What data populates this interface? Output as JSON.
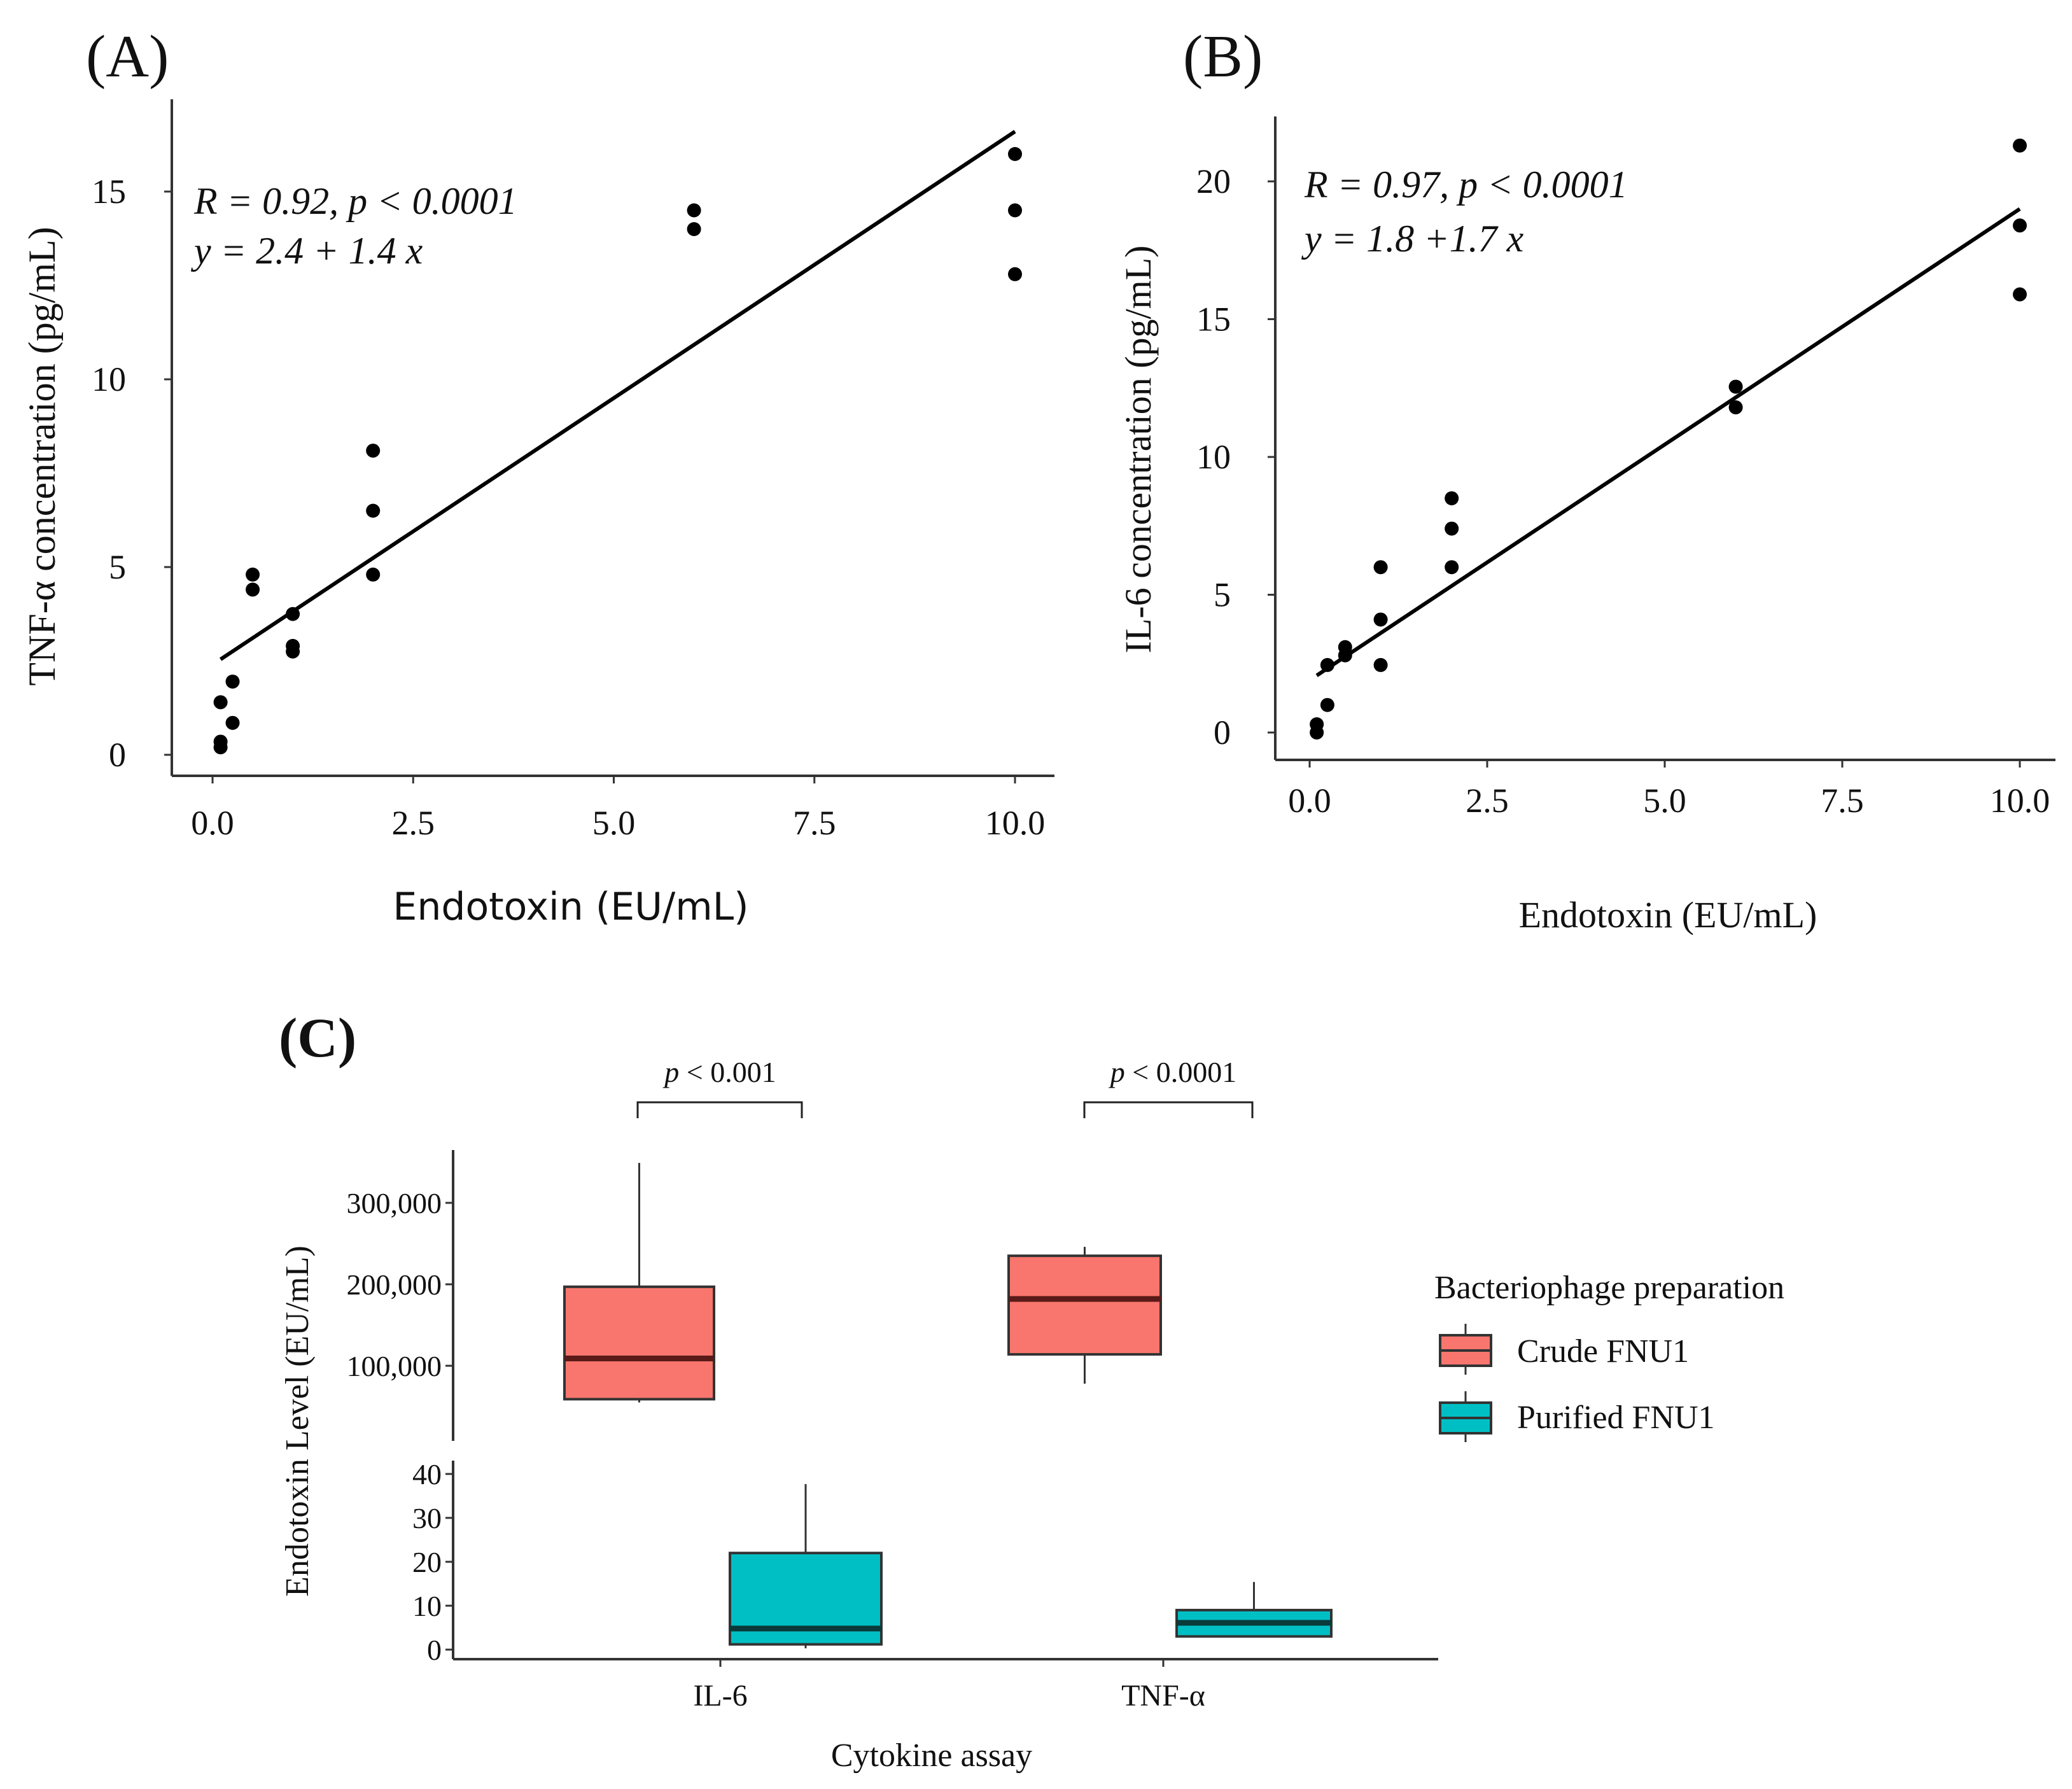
{
  "chart_data": [
    {
      "type": "scatter",
      "panel_label": "(A)",
      "xlabel": "Endotoxin (EU/mL)",
      "ylabel": "TNF-α concentration (pg/mL)",
      "annotation_r": "R = 0.92, p < 0.0001",
      "annotation_eq": "y = 2.4 + 1.4 x",
      "xlim": [
        -0.2,
        10.6
      ],
      "ylim": [
        -0.6,
        16.6
      ],
      "xticks": [
        0,
        2.5,
        5,
        7.5,
        10
      ],
      "xtick_labels": [
        "0.0",
        "2.5",
        "5.0",
        "7.5",
        "10.0"
      ],
      "yticks": [
        0,
        5,
        10,
        15
      ],
      "ytick_labels": [
        "0",
        "5",
        "10",
        "15"
      ],
      "points": [
        {
          "x": 0.1,
          "y": 0.2
        },
        {
          "x": 0.1,
          "y": 0.35
        },
        {
          "x": 0.1,
          "y": 1.4
        },
        {
          "x": 0.25,
          "y": 0.85
        },
        {
          "x": 0.25,
          "y": 1.95
        },
        {
          "x": 0.5,
          "y": 4.8
        },
        {
          "x": 0.5,
          "y": 4.4
        },
        {
          "x": 1,
          "y": 3.75
        },
        {
          "x": 1,
          "y": 2.9
        },
        {
          "x": 1,
          "y": 2.75
        },
        {
          "x": 2,
          "y": 8.1
        },
        {
          "x": 2,
          "y": 6.5
        },
        {
          "x": 2,
          "y": 4.8
        },
        {
          "x": 6,
          "y": 14.5
        },
        {
          "x": 6,
          "y": 14.0
        },
        {
          "x": 10,
          "y": 16.0
        },
        {
          "x": 10,
          "y": 14.5
        },
        {
          "x": 10,
          "y": 12.8
        }
      ],
      "fit": {
        "intercept": 2.4,
        "slope": 1.42,
        "x_range": [
          0.1,
          10
        ]
      }
    },
    {
      "type": "scatter",
      "panel_label": "(B)",
      "xlabel": "Endotoxin (EU/mL)",
      "ylabel": "IL-6 concentration (pg/mL)",
      "annotation_r": "R = 0.97, p < 0.0001",
      "annotation_eq": "y = 1.8 +1.7 x",
      "xlim": [
        -0.5,
        10.5
      ],
      "ylim": [
        -1,
        22.5
      ],
      "xticks": [
        0,
        2.5,
        5,
        7.5,
        10
      ],
      "xtick_labels": [
        "0.0",
        "2.5",
        "5.0",
        "7.5",
        "10.0"
      ],
      "yticks": [
        0,
        5,
        10,
        15,
        20
      ],
      "ytick_labels": [
        "0",
        "5",
        "10",
        "15",
        "20"
      ],
      "points": [
        {
          "x": 0.1,
          "y": 0.0
        },
        {
          "x": 0.1,
          "y": 0.3
        },
        {
          "x": 0.25,
          "y": 1.0
        },
        {
          "x": 0.25,
          "y": 2.45
        },
        {
          "x": 0.5,
          "y": 3.1
        },
        {
          "x": 0.5,
          "y": 2.8
        },
        {
          "x": 1,
          "y": 6.0
        },
        {
          "x": 1,
          "y": 4.1
        },
        {
          "x": 1,
          "y": 2.45
        },
        {
          "x": 2,
          "y": 8.5
        },
        {
          "x": 2,
          "y": 7.4
        },
        {
          "x": 2,
          "y": 6.0
        },
        {
          "x": 6,
          "y": 12.55
        },
        {
          "x": 6,
          "y": 11.8
        },
        {
          "x": 10,
          "y": 21.3
        },
        {
          "x": 10,
          "y": 18.4
        },
        {
          "x": 10,
          "y": 15.9
        }
      ],
      "fit": {
        "intercept": 1.9,
        "slope": 1.71,
        "x_range": [
          0.1,
          10
        ]
      }
    },
    {
      "type": "box",
      "panel_label": "(C)",
      "xlabel": "Cytokine assay",
      "ylabel": "Endotoxin Level (EU/mL)",
      "categories": [
        "IL-6",
        "TNF-α"
      ],
      "upper_axis": {
        "ylim": [
          20000,
          365000
        ],
        "yticks": [
          100000,
          200000,
          300000
        ],
        "ytick_labels": [
          "100,000",
          "200,000",
          "300,000"
        ]
      },
      "lower_axis": {
        "ylim": [
          -1,
          42
        ],
        "yticks": [
          0,
          10,
          20,
          30,
          40
        ],
        "ytick_labels": [
          "0",
          "10",
          "20",
          "30",
          "40"
        ]
      },
      "legend": {
        "title": "Bacteriophage preparation",
        "position": "right"
      },
      "series": [
        {
          "name": "Crude FNU1",
          "color": "#F8766D",
          "median_color": "#5a1a18",
          "boxes": [
            {
              "category": "IL-6",
              "min": 55000,
              "q1": 59000,
              "median": 109000,
              "q3": 197000,
              "max": 349000
            },
            {
              "category": "TNF-α",
              "min": 78000,
              "q1": 114000,
              "median": 182000,
              "q3": 235000,
              "max": 246000
            }
          ]
        },
        {
          "name": "Purified FNU1",
          "color": "#00BFC4",
          "median_color": "#0b3a3a",
          "boxes": [
            {
              "category": "IL-6",
              "min": 0.3,
              "q1": 1.2,
              "median": 4.8,
              "q3": 22,
              "max": 37.7
            },
            {
              "category": "TNF-α",
              "min": 3,
              "q1": 3,
              "median": 6.1,
              "q3": 9,
              "max": 15.4
            }
          ]
        }
      ],
      "comparisons": [
        {
          "category": "IL-6",
          "label_p": "p",
          "label_rest": " < 0.001"
        },
        {
          "category": "TNF-α",
          "label_p": "p",
          "label_rest": " < 0.0001"
        }
      ]
    }
  ]
}
